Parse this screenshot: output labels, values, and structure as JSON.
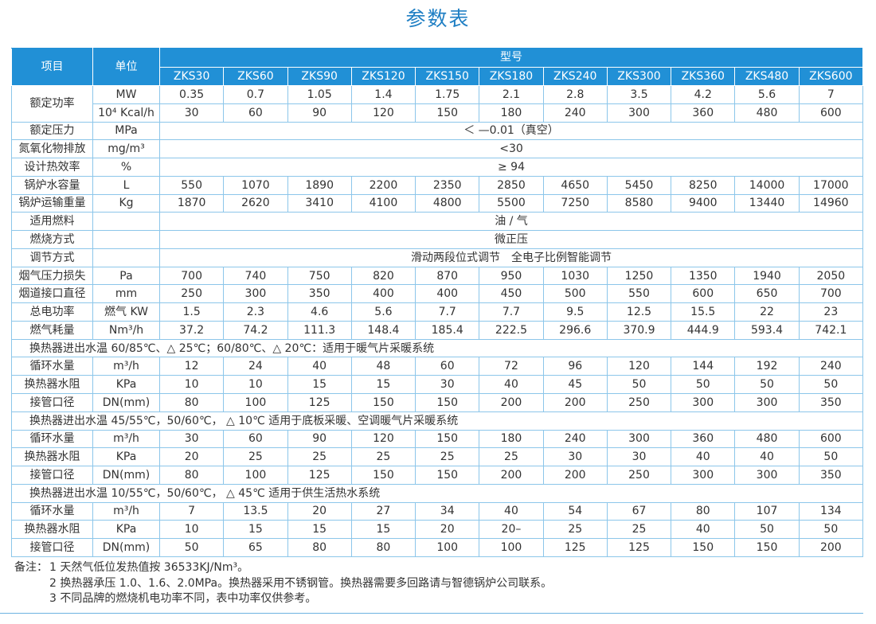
{
  "title": "参数表",
  "table": {
    "header": {
      "item": "项目",
      "unit": "单位",
      "model_group": "型号",
      "models": [
        "ZKS30",
        "ZKS60",
        "ZKS90",
        "ZKS120",
        "ZKS150",
        "ZKS180",
        "ZKS240",
        "ZKS300",
        "ZKS360",
        "ZKS480",
        "ZKS600"
      ]
    },
    "rows": [
      {
        "item": "额定功率",
        "unit": "MW",
        "values": [
          0.35,
          0.7,
          1.05,
          1.4,
          1.75,
          2.1,
          2.8,
          3.5,
          4.2,
          5.6,
          7
        ]
      },
      {
        "unit": "10⁴ Kcal/h",
        "values": [
          30,
          60,
          90,
          120,
          150,
          180,
          240,
          300,
          360,
          480,
          600
        ]
      },
      {
        "item": "额定压力",
        "unit": "MPa",
        "text": "＜ —0.01（真空）"
      },
      {
        "item": "氮氧化物排放",
        "unit": "mg/m³",
        "text": "<30"
      },
      {
        "item": "设计热效率",
        "unit": "%",
        "text": "≥ 94"
      },
      {
        "item": "锅炉水容量",
        "unit": "L",
        "values": [
          550,
          1070,
          1890,
          2200,
          2350,
          2850,
          4650,
          5450,
          8250,
          14000,
          17000
        ]
      },
      {
        "item": "锅炉运输重量",
        "unit": "Kg",
        "values": [
          1870,
          2620,
          3410,
          4100,
          4800,
          5500,
          7250,
          8580,
          9400,
          13440,
          14960
        ]
      },
      {
        "item": "适用燃料",
        "text": "油 / 气"
      },
      {
        "item": "燃烧方式",
        "text": "微正压"
      },
      {
        "item": "调节方式",
        "text": "滑动两段位式调节　全电子比例智能调节"
      },
      {
        "item": "烟气压力损失",
        "unit": "Pa",
        "values": [
          700,
          740,
          750,
          820,
          870,
          950,
          1030,
          1250,
          1350,
          1940,
          2050
        ]
      },
      {
        "item": "烟道接口直径",
        "unit": "mm",
        "values": [
          250,
          300,
          350,
          400,
          400,
          450,
          500,
          550,
          600,
          650,
          700
        ]
      },
      {
        "item": "总电功率",
        "unit": "燃气 KW",
        "values": [
          1.5,
          2.3,
          4.6,
          5.6,
          7.7,
          7.7,
          9.5,
          12.5,
          15.5,
          22,
          23
        ]
      },
      {
        "item": "燃气耗量",
        "unit": "Nm³/h",
        "values": [
          37.2,
          74.2,
          111.3,
          148.4,
          185.4,
          222.5,
          296.6,
          370.9,
          444.9,
          593.4,
          742.1
        ]
      },
      {
        "section": "换热器进出水温 60/85℃、△ 25℃；60/80℃、△ 20℃：适用于暖气片采暖系统"
      },
      {
        "item": "循环水量",
        "unit": "m³/h",
        "values": [
          12,
          24,
          40,
          48,
          60,
          72,
          96,
          120,
          144,
          192,
          240
        ]
      },
      {
        "item": "换热器水阻",
        "unit": "KPa",
        "values": [
          10,
          10,
          15,
          15,
          30,
          40,
          45,
          50,
          50,
          50,
          50
        ]
      },
      {
        "item": "接管口径",
        "unit": "DN(mm)",
        "values": [
          80,
          100,
          125,
          150,
          150,
          200,
          200,
          250,
          300,
          300,
          350
        ]
      },
      {
        "section": "换热器进出水温 45/55℃，50/60℃， △ 10℃  适用于底板采暖、空调暖气片采暖系统"
      },
      {
        "item": "循环水量",
        "unit": "m³/h",
        "values": [
          30,
          60,
          90,
          120,
          150,
          180,
          240,
          300,
          360,
          480,
          600
        ]
      },
      {
        "item": "换热器水阻",
        "unit": "KPa",
        "values": [
          20,
          25,
          25,
          25,
          25,
          25,
          30,
          30,
          40,
          40,
          50
        ]
      },
      {
        "item": "接管口径",
        "unit": "DN(mm)",
        "values": [
          80,
          100,
          125,
          150,
          150,
          200,
          200,
          250,
          300,
          300,
          350
        ]
      },
      {
        "section": "换热器进出水温 10/55℃，50/60℃， △ 45℃  适用于供生活热水系统"
      },
      {
        "item": "循环水量",
        "unit": "m³/h",
        "values": [
          7,
          13.5,
          20,
          27,
          34,
          40,
          54,
          67,
          80,
          107,
          134
        ]
      },
      {
        "item": "换热器水阻",
        "unit": "KPa",
        "values": [
          10,
          15,
          15,
          15,
          20,
          "20–",
          25,
          25,
          40,
          50,
          50
        ]
      },
      {
        "item": "接管口径",
        "unit": "DN(mm)",
        "values": [
          50,
          65,
          80,
          80,
          100,
          100,
          125,
          125,
          150,
          150,
          200
        ]
      }
    ]
  },
  "notes": {
    "label": "备注：",
    "items": [
      "1  天然气低位发热值按 36533KJ/Nm³。",
      "2  换热器承压 1.0、1.6、2.0MPa。换热器采用不锈钢管。换热器需要多回路请与智德锅炉公司联系。",
      "3  不同品牌的燃烧机电功率不同，表中功率仅供参考。"
    ]
  }
}
